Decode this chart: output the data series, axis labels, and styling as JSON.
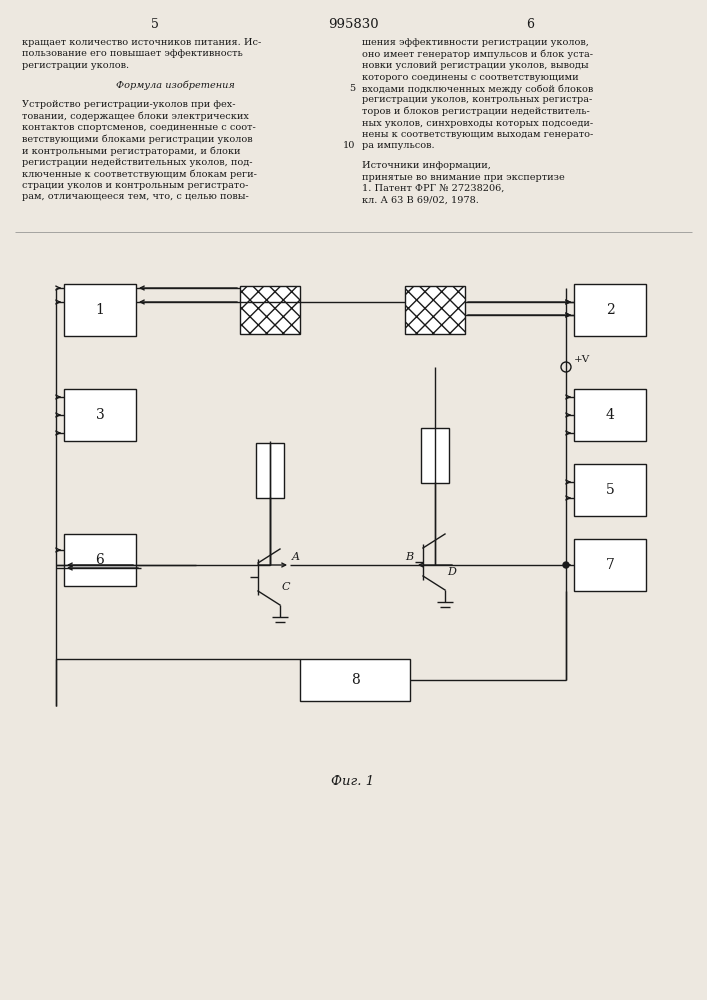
{
  "bg_color": "#ede8e0",
  "line_color": "#1a1a1a",
  "title": "995830",
  "fig_caption": "Фиг. 1",
  "pg_left": "5",
  "pg_right": "6",
  "col1_lines": [
    [
      "кращает количество источников питания. Ис-",
      "normal"
    ],
    [
      "пользование его повышает эффективность",
      "normal"
    ],
    [
      "регистрации уколов.",
      "normal"
    ],
    [
      "",
      "normal"
    ],
    [
      "Формула изобретения",
      "italic"
    ],
    [
      "",
      "normal"
    ],
    [
      "Устройство регистрации-уколов при фех-",
      "normal"
    ],
    [
      "товании, содержащее блоки электрических",
      "normal"
    ],
    [
      "контактов спортсменов, соединенные с соот-",
      "normal"
    ],
    [
      "ветствующими блоками регистрации уколов",
      "normal"
    ],
    [
      "и контрольными регистраторами, и блоки",
      "normal"
    ],
    [
      "регистрации недействительных уколов, под-",
      "normal"
    ],
    [
      "ключенные к соответствующим блокам реги-",
      "normal"
    ],
    [
      "страции уколов и контрольным регистрато-",
      "normal"
    ],
    [
      "рам, отличающееся тем, что, с целью повы-",
      "normal"
    ]
  ],
  "col2_lines": [
    [
      "шения эффективности регистрации уколов,",
      "normal"
    ],
    [
      "оно имеет генератор импульсов и блок уста-",
      "normal"
    ],
    [
      "новки условий регистрации уколов, выводы",
      "normal"
    ],
    [
      "которого соединены с соответствующими",
      "normal"
    ],
    [
      "входами подключенных между собой блоков",
      "normal"
    ],
    [
      "регистрации уколов, контрольных регистра-",
      "normal"
    ],
    [
      "торов и блоков регистрации недействитель-",
      "normal"
    ],
    [
      "ных уколов, синхровходы которых подсоеди-",
      "normal"
    ],
    [
      "нены к соответствующим выходам генерато-",
      "normal"
    ],
    [
      "ра импульсов.",
      "normal"
    ],
    [
      "",
      "normal"
    ],
    [
      "Источники информации,",
      "normal"
    ],
    [
      "принятые во внимание при экспертизе",
      "normal"
    ],
    [
      "1. Патент ФРГ № 27238206,",
      "normal"
    ],
    [
      "кл. А 63 В 69/02, 1978.",
      "normal"
    ]
  ]
}
